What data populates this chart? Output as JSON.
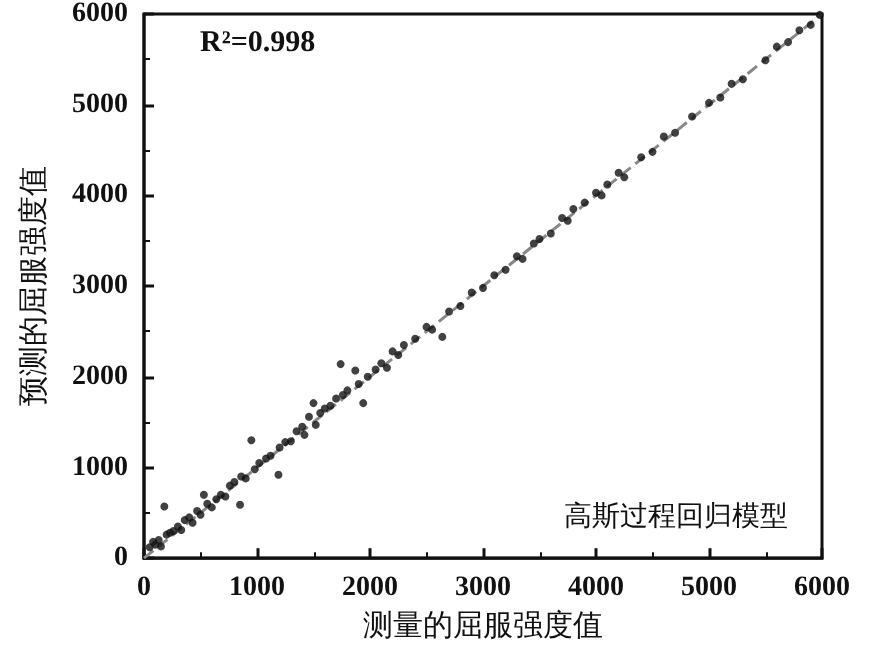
{
  "chart_data": {
    "type": "scatter",
    "xlabel": "测量的屈服强度值",
    "ylabel": "预测的屈服强度值",
    "xlim": [
      0,
      6000
    ],
    "ylim": [
      0,
      6000
    ],
    "xticks": [
      0,
      1000,
      2000,
      3000,
      4000,
      5000,
      6000
    ],
    "yticks": [
      0,
      1000,
      2000,
      3000,
      4000,
      5000,
      6000
    ],
    "marker": "circle",
    "annotations": [
      "R²=0.998",
      "高斯过程回归模型"
    ],
    "series": [
      {
        "color": "#111111",
        "x": [
          50,
          80,
          100,
          130,
          150,
          180,
          200,
          230,
          260,
          300,
          330,
          360,
          400,
          430,
          470,
          500,
          530,
          560,
          600,
          640,
          680,
          720,
          760,
          800,
          850,
          860,
          900,
          950,
          980,
          1020,
          1080,
          1120,
          1190,
          1200,
          1250,
          1300,
          1350,
          1400,
          1420,
          1460,
          1500,
          1520,
          1560,
          1600,
          1650,
          1700,
          1740,
          1760,
          1800,
          1870,
          1900,
          1940,
          1980,
          2050,
          2100,
          2150,
          2200,
          2250,
          2300,
          2400,
          2500,
          2550,
          2640,
          2700,
          2800,
          2900,
          3000,
          3100,
          3200,
          3300,
          3350,
          3450,
          3500,
          3600,
          3700,
          3750,
          3800,
          3900,
          4000,
          4050,
          4100,
          4200,
          4250,
          4400,
          4500,
          4600,
          4700,
          4850,
          5000,
          5100,
          5200,
          5300,
          5500,
          5600,
          5700,
          5800,
          5900,
          5980
        ],
        "values": [
          120,
          180,
          150,
          200,
          130,
          570,
          260,
          280,
          300,
          350,
          310,
          420,
          450,
          390,
          520,
          480,
          700,
          600,
          560,
          650,
          700,
          680,
          800,
          840,
          590,
          900,
          880,
          1300,
          980,
          1050,
          1100,
          1130,
          920,
          1220,
          1280,
          1290,
          1400,
          1450,
          1360,
          1560,
          1710,
          1470,
          1600,
          1650,
          1680,
          1760,
          2140,
          1800,
          1850,
          2070,
          1920,
          1710,
          2000,
          2080,
          2150,
          2100,
          2280,
          2240,
          2350,
          2420,
          2550,
          2520,
          2440,
          2720,
          2780,
          2930,
          2980,
          3120,
          3180,
          3330,
          3300,
          3470,
          3520,
          3580,
          3750,
          3720,
          3850,
          3920,
          4030,
          4000,
          4120,
          4250,
          4200,
          4420,
          4480,
          4650,
          4690,
          4870,
          5020,
          5080,
          5230,
          5280,
          5490,
          5640,
          5690,
          5820,
          5880,
          5990
        ]
      },
      {
        "type": "line",
        "color": "#888888",
        "line_style": "dashed",
        "marker": "none",
        "x": [
          0,
          6000
        ],
        "values": [
          0,
          6000
        ]
      }
    ]
  }
}
